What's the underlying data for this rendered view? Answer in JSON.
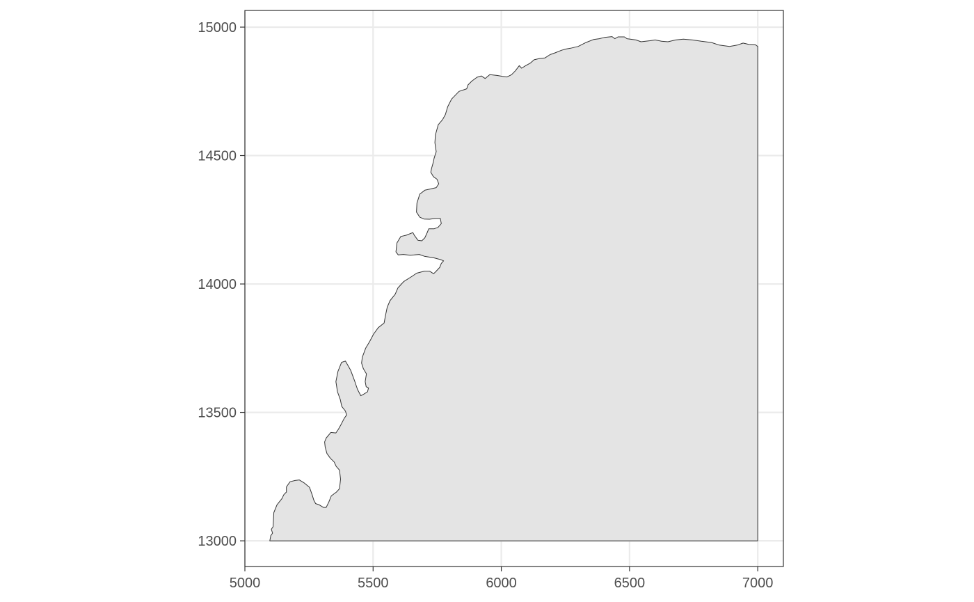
{
  "chart_data": {
    "type": "area",
    "title": "",
    "xlabel": "",
    "ylabel": "",
    "xlim": [
      5000,
      7100
    ],
    "ylim": [
      12900,
      15065
    ],
    "x_ticks": [
      5000,
      5500,
      6000,
      6500,
      7000
    ],
    "y_ticks": [
      13000,
      13500,
      14000,
      14500,
      15000
    ],
    "x_tick_labels": [
      "5000",
      "5500",
      "6000",
      "6500",
      "7000"
    ],
    "y_tick_labels": [
      "13000",
      "13500",
      "14000",
      "14500",
      "15000"
    ],
    "grid": true,
    "legend": "none",
    "fill_color": "#e4e4e4",
    "outline_color": "#333333",
    "polygon": [
      [
        5097,
        13000
      ],
      [
        5101,
        13020
      ],
      [
        5108,
        13030
      ],
      [
        5103,
        13045
      ],
      [
        5110,
        13055
      ],
      [
        5113,
        13110
      ],
      [
        5125,
        13140
      ],
      [
        5145,
        13165
      ],
      [
        5152,
        13180
      ],
      [
        5162,
        13190
      ],
      [
        5162,
        13210
      ],
      [
        5176,
        13230
      ],
      [
        5196,
        13235
      ],
      [
        5212,
        13237
      ],
      [
        5232,
        13225
      ],
      [
        5252,
        13208
      ],
      [
        5262,
        13180
      ],
      [
        5269,
        13158
      ],
      [
        5276,
        13145
      ],
      [
        5290,
        13140
      ],
      [
        5306,
        13130
      ],
      [
        5317,
        13130
      ],
      [
        5327,
        13150
      ],
      [
        5337,
        13175
      ],
      [
        5357,
        13190
      ],
      [
        5369,
        13203
      ],
      [
        5373,
        13240
      ],
      [
        5369,
        13275
      ],
      [
        5356,
        13290
      ],
      [
        5348,
        13307
      ],
      [
        5333,
        13322
      ],
      [
        5320,
        13340
      ],
      [
        5313,
        13365
      ],
      [
        5311,
        13385
      ],
      [
        5317,
        13400
      ],
      [
        5335,
        13422
      ],
      [
        5355,
        13420
      ],
      [
        5365,
        13435
      ],
      [
        5376,
        13455
      ],
      [
        5388,
        13478
      ],
      [
        5397,
        13490
      ],
      [
        5392,
        13505
      ],
      [
        5378,
        13523
      ],
      [
        5372,
        13550
      ],
      [
        5361,
        13580
      ],
      [
        5355,
        13620
      ],
      [
        5363,
        13660
      ],
      [
        5377,
        13695
      ],
      [
        5392,
        13700
      ],
      [
        5412,
        13665
      ],
      [
        5427,
        13625
      ],
      [
        5439,
        13590
      ],
      [
        5452,
        13565
      ],
      [
        5462,
        13570
      ],
      [
        5478,
        13580
      ],
      [
        5482,
        13595
      ],
      [
        5473,
        13600
      ],
      [
        5469,
        13620
      ],
      [
        5474,
        13650
      ],
      [
        5462,
        13670
      ],
      [
        5455,
        13692
      ],
      [
        5458,
        13715
      ],
      [
        5471,
        13750
      ],
      [
        5486,
        13775
      ],
      [
        5502,
        13805
      ],
      [
        5520,
        13830
      ],
      [
        5543,
        13848
      ],
      [
        5549,
        13880
      ],
      [
        5555,
        13910
      ],
      [
        5566,
        13935
      ],
      [
        5586,
        13960
      ],
      [
        5597,
        13985
      ],
      [
        5620,
        14010
      ],
      [
        5652,
        14030
      ],
      [
        5670,
        14042
      ],
      [
        5700,
        14050
      ],
      [
        5720,
        14050
      ],
      [
        5736,
        14040
      ],
      [
        5746,
        14050
      ],
      [
        5760,
        14065
      ],
      [
        5766,
        14080
      ],
      [
        5775,
        14090
      ],
      [
        5763,
        14095
      ],
      [
        5736,
        14102
      ],
      [
        5700,
        14108
      ],
      [
        5680,
        14115
      ],
      [
        5660,
        14113
      ],
      [
        5645,
        14112
      ],
      [
        5618,
        14115
      ],
      [
        5598,
        14113
      ],
      [
        5589,
        14125
      ],
      [
        5593,
        14160
      ],
      [
        5608,
        14185
      ],
      [
        5630,
        14190
      ],
      [
        5655,
        14200
      ],
      [
        5662,
        14188
      ],
      [
        5675,
        14170
      ],
      [
        5690,
        14168
      ],
      [
        5702,
        14180
      ],
      [
        5710,
        14198
      ],
      [
        5717,
        14215
      ],
      [
        5738,
        14215
      ],
      [
        5753,
        14220
      ],
      [
        5766,
        14235
      ],
      [
        5762,
        14255
      ],
      [
        5742,
        14255
      ],
      [
        5720,
        14252
      ],
      [
        5698,
        14253
      ],
      [
        5682,
        14260
      ],
      [
        5669,
        14280
      ],
      [
        5671,
        14315
      ],
      [
        5682,
        14350
      ],
      [
        5702,
        14365
      ],
      [
        5724,
        14370
      ],
      [
        5746,
        14375
      ],
      [
        5756,
        14390
      ],
      [
        5749,
        14408
      ],
      [
        5735,
        14418
      ],
      [
        5725,
        14435
      ],
      [
        5728,
        14450
      ],
      [
        5735,
        14475
      ],
      [
        5738,
        14490
      ],
      [
        5746,
        14515
      ],
      [
        5741,
        14550
      ],
      [
        5743,
        14580
      ],
      [
        5754,
        14620
      ],
      [
        5771,
        14640
      ],
      [
        5782,
        14660
      ],
      [
        5791,
        14690
      ],
      [
        5806,
        14720
      ],
      [
        5835,
        14750
      ],
      [
        5865,
        14760
      ],
      [
        5870,
        14775
      ],
      [
        5885,
        14790
      ],
      [
        5905,
        14805
      ],
      [
        5922,
        14810
      ],
      [
        5937,
        14800
      ],
      [
        5955,
        14815
      ],
      [
        5983,
        14812
      ],
      [
        6005,
        14808
      ],
      [
        6022,
        14806
      ],
      [
        6040,
        14815
      ],
      [
        6055,
        14830
      ],
      [
        6070,
        14850
      ],
      [
        6079,
        14840
      ],
      [
        6095,
        14850
      ],
      [
        6113,
        14860
      ],
      [
        6128,
        14873
      ],
      [
        6150,
        14878
      ],
      [
        6170,
        14880
      ],
      [
        6190,
        14893
      ],
      [
        6210,
        14900
      ],
      [
        6235,
        14910
      ],
      [
        6253,
        14915
      ],
      [
        6270,
        14918
      ],
      [
        6300,
        14925
      ],
      [
        6330,
        14940
      ],
      [
        6360,
        14952
      ],
      [
        6382,
        14955
      ],
      [
        6402,
        14960
      ],
      [
        6432,
        14963
      ],
      [
        6443,
        14955
      ],
      [
        6455,
        14962
      ],
      [
        6480,
        14962
      ],
      [
        6490,
        14955
      ],
      [
        6525,
        14950
      ],
      [
        6545,
        14943
      ],
      [
        6580,
        14947
      ],
      [
        6600,
        14950
      ],
      [
        6625,
        14945
      ],
      [
        6650,
        14943
      ],
      [
        6680,
        14950
      ],
      [
        6710,
        14953
      ],
      [
        6745,
        14950
      ],
      [
        6780,
        14945
      ],
      [
        6820,
        14940
      ],
      [
        6850,
        14930
      ],
      [
        6890,
        14925
      ],
      [
        6920,
        14930
      ],
      [
        6943,
        14938
      ],
      [
        6965,
        14933
      ],
      [
        6990,
        14932
      ],
      [
        7000,
        14925
      ],
      [
        7000,
        13000
      ]
    ]
  }
}
